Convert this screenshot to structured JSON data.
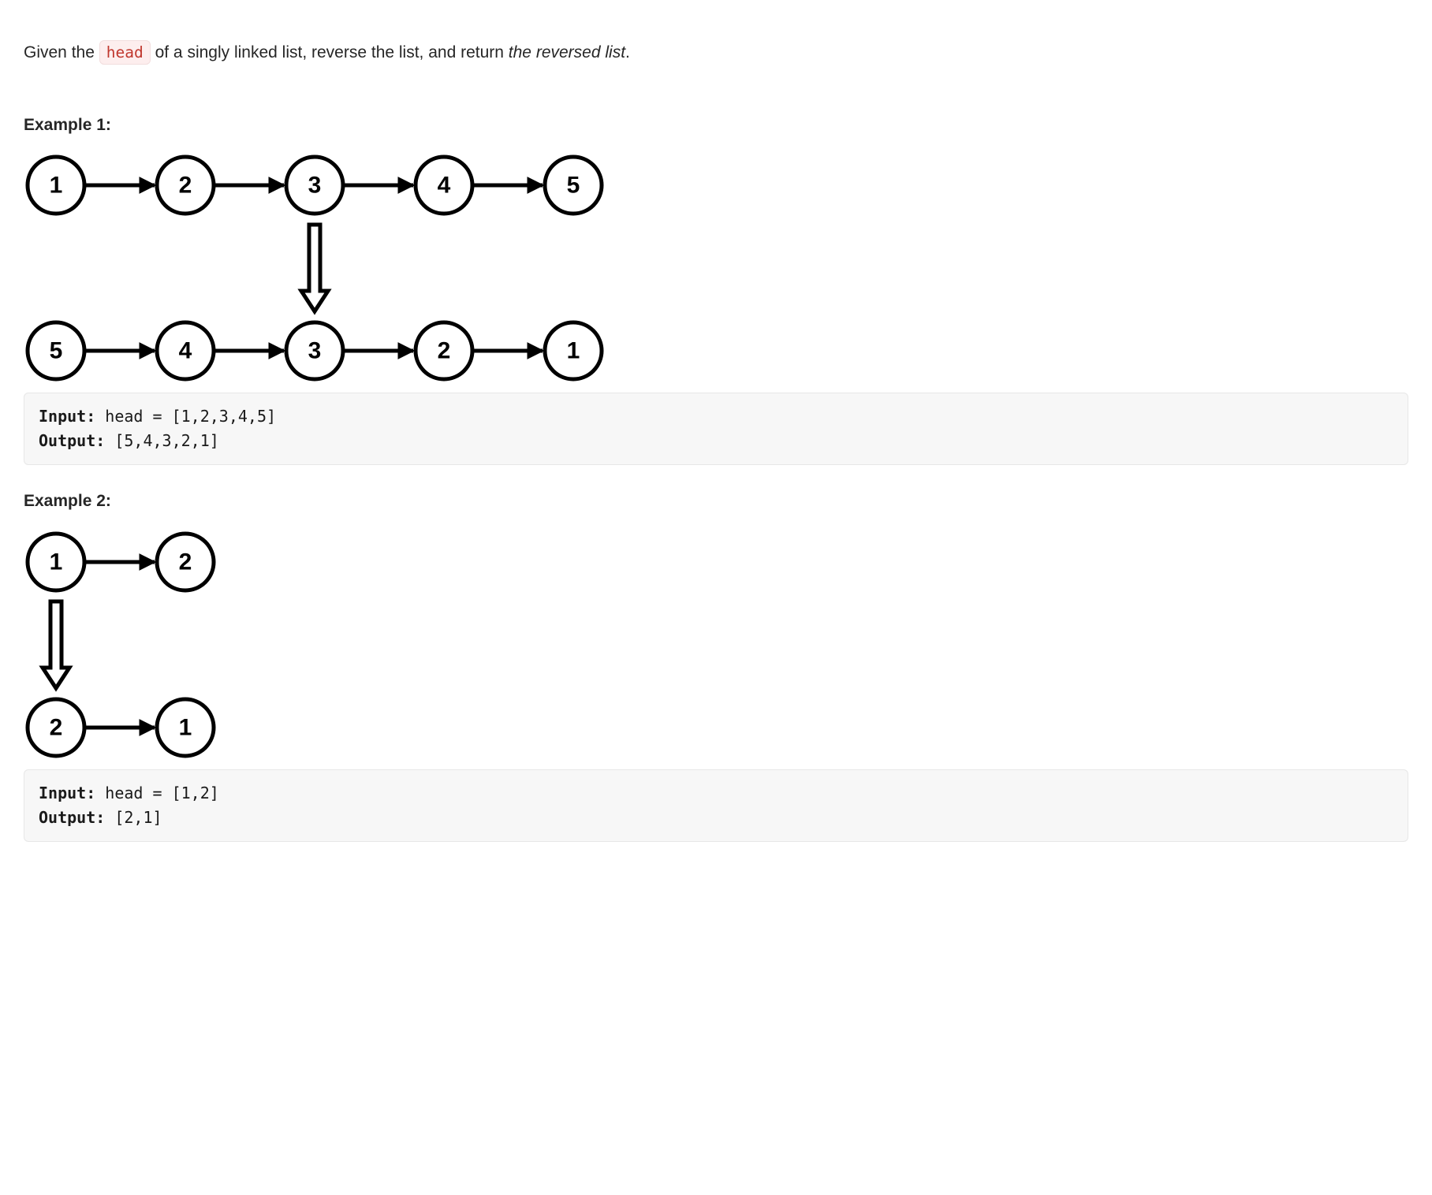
{
  "problem": {
    "pre_code": "Given the ",
    "code_token": "head",
    "post_code": " of a singly linked list, reverse the list, and return ",
    "italic_part": "the reversed list",
    "trailing": "."
  },
  "diagram_style": {
    "node_radius": 36,
    "node_stroke": "#000000",
    "node_stroke_width": 5,
    "node_fill": "#ffffff",
    "label_font_size": 30,
    "label_font_weight": "700",
    "label_color": "#000000",
    "arrow_stroke": "#000000",
    "arrow_stroke_width": 5,
    "node_gap": 164,
    "row_gap": 210
  },
  "example1": {
    "heading": "Example 1:",
    "row_top": [
      "1",
      "2",
      "3",
      "4",
      "5"
    ],
    "row_bottom": [
      "5",
      "4",
      "3",
      "2",
      "1"
    ],
    "down_arrow_after_index": 2,
    "input_label": "Input:",
    "input_text": " head = [1,2,3,4,5]",
    "output_label": "Output:",
    "output_text": " [5,4,3,2,1]"
  },
  "example2": {
    "heading": "Example 2:",
    "row_top": [
      "1",
      "2"
    ],
    "row_bottom": [
      "2",
      "1"
    ],
    "down_arrow_after_index": 0,
    "input_label": "Input:",
    "input_text": " head = [1,2]",
    "output_label": "Output:",
    "output_text": " [2,1]"
  }
}
